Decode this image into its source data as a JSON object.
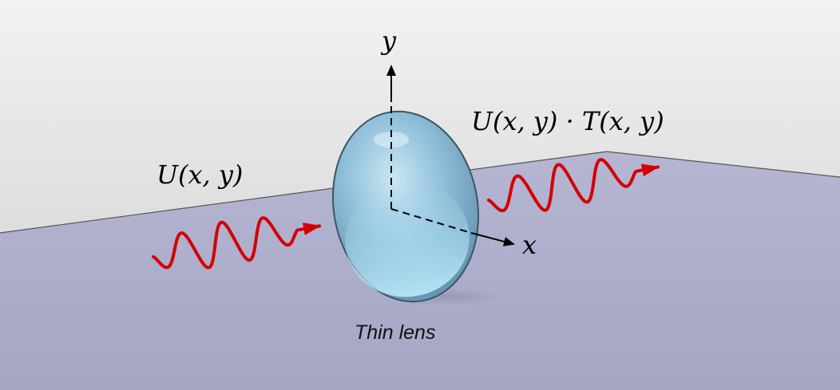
{
  "labels": {
    "y_axis": "y",
    "x_axis": "x",
    "input_field": "U(x, y)",
    "output_field": "U(x, y) · T(x, y)",
    "lens_caption": "Thin lens"
  },
  "colors": {
    "wave": "#d40000",
    "floor": "#a8aac8",
    "wall": "#e6e6e6",
    "lens": "#8fc3de",
    "axis": "#000000"
  },
  "icons": {
    "lens": "lens-icon",
    "input_wave": "sine-wave-arrow-icon",
    "output_wave": "sine-wave-arrow-icon"
  }
}
